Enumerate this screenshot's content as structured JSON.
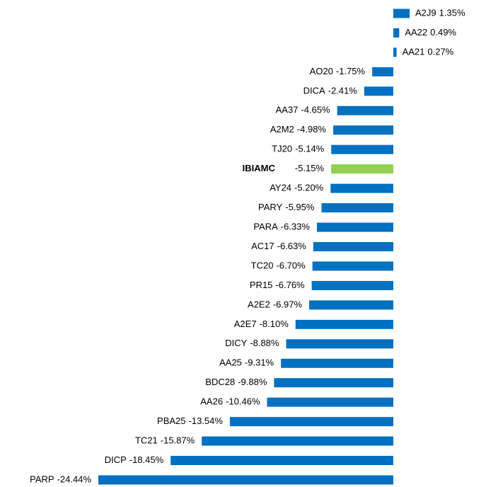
{
  "chart_data": {
    "type": "bar",
    "orientation": "horizontal",
    "categories": [
      "A2J9",
      "AA22",
      "AA21",
      "AO20",
      "DICA",
      "AA37",
      "A2M2",
      "TJ20",
      "IBIAMC",
      "AY24",
      "PARY",
      "PARA",
      "AC17",
      "TC20",
      "PR15",
      "A2E2",
      "A2E7",
      "DICY",
      "AA25",
      "BDC28",
      "AA26",
      "PBA25",
      "TC21",
      "DICP",
      "PARP"
    ],
    "values": [
      1.35,
      0.49,
      0.27,
      -1.75,
      -2.41,
      -4.65,
      -4.98,
      -5.14,
      -5.15,
      -5.2,
      -5.95,
      -6.33,
      -6.63,
      -6.7,
      -6.76,
      -6.97,
      -8.1,
      -8.88,
      -9.31,
      -9.88,
      -10.46,
      -13.54,
      -15.87,
      -18.45,
      -24.44
    ],
    "value_labels": [
      "1.35%",
      "0.49%",
      "0.27%",
      "-1.75%",
      "-2.41%",
      "-4.65%",
      "-4.98%",
      "-5.14%",
      "-5.15%",
      "-5.20%",
      "-5.95%",
      "-6.33%",
      "-6.63%",
      "-6.70%",
      "-6.76%",
      "-6.97%",
      "-8.10%",
      "-8.88%",
      "-9.31%",
      "-9.88%",
      "-10.46%",
      "-13.54%",
      "-15.87%",
      "-18.45%",
      "-24.44%"
    ],
    "color": "#0070c0",
    "highlight_color": "#92d050",
    "highlight": [
      8
    ],
    "xlim": [
      -24.44,
      1.35
    ]
  }
}
